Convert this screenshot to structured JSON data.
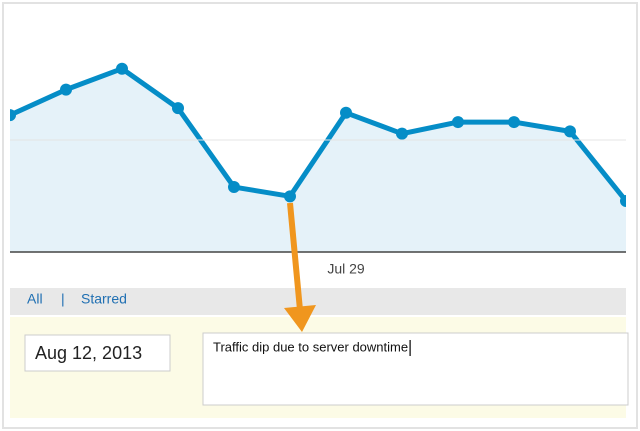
{
  "chart_data": {
    "type": "line",
    "categories": [
      null,
      null,
      null,
      null,
      null,
      null,
      "Jul 29",
      null,
      null,
      null,
      null,
      null
    ],
    "values": [
      59,
      70,
      79,
      62,
      28,
      24,
      60,
      51,
      56,
      56,
      52,
      22
    ],
    "color": "#058dc7",
    "area_color": "#e5f2f9",
    "ylim": [
      0,
      100
    ]
  },
  "annotation_panel": {
    "tabs": [
      "All",
      "Starred"
    ],
    "separator": "|",
    "date": "Aug 12, 2013",
    "note": "Traffic dip due to server downtime"
  }
}
